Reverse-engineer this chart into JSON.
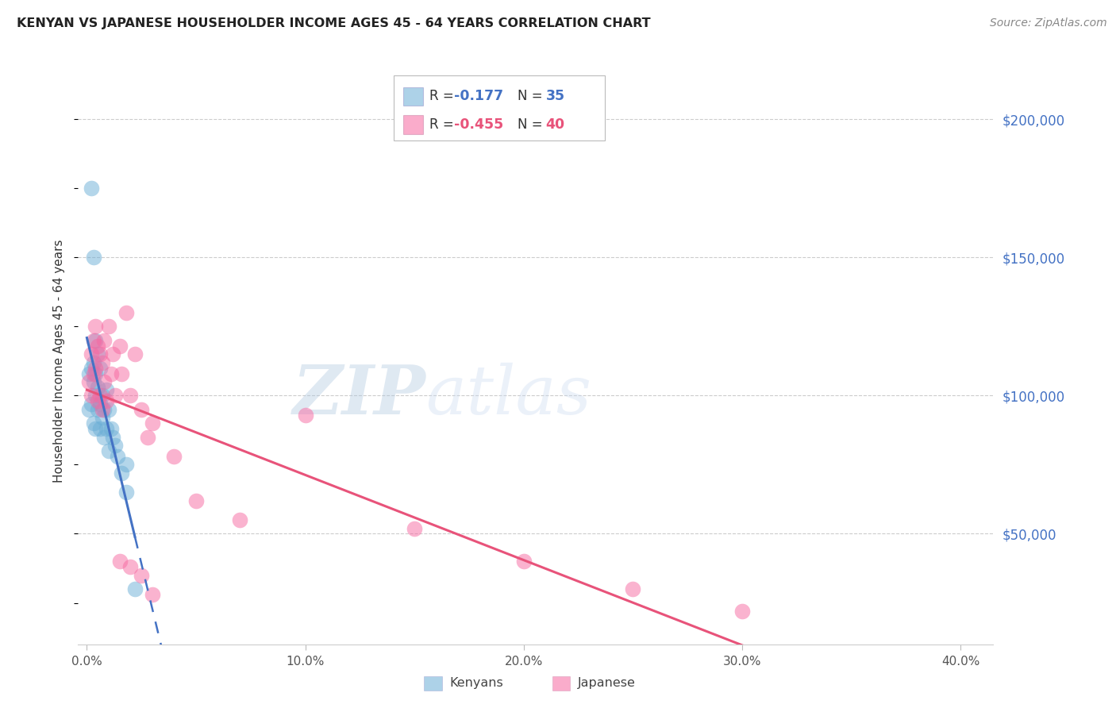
{
  "title": "KENYAN VS JAPANESE HOUSEHOLDER INCOME AGES 45 - 64 YEARS CORRELATION CHART",
  "source": "Source: ZipAtlas.com",
  "ylabel": "Householder Income Ages 45 - 64 years",
  "xlim": [
    -0.004,
    0.415
  ],
  "ylim": [
    10000,
    215000
  ],
  "ytick_vals": [
    50000,
    100000,
    150000,
    200000
  ],
  "ytick_labels": [
    "$50,000",
    "$100,000",
    "$150,000",
    "$200,000"
  ],
  "xtick_vals": [
    0.0,
    0.1,
    0.2,
    0.3,
    0.4
  ],
  "xtick_labels": [
    "0.0%",
    "10.0%",
    "20.0%",
    "30.0%",
    "40.0%"
  ],
  "kenyan_R": "-0.177",
  "kenyan_N": "35",
  "japanese_R": "-0.455",
  "japanese_N": "40",
  "kenyan_color": "#6baed6",
  "japanese_color": "#f768a1",
  "kenyan_line_color": "#4472c4",
  "japanese_line_color": "#e8537a",
  "watermark_zip": "ZIP",
  "watermark_atlas": "atlas",
  "background_color": "#ffffff",
  "grid_color": "#cccccc",
  "kenyan_x": [
    0.001,
    0.001,
    0.002,
    0.002,
    0.003,
    0.003,
    0.003,
    0.004,
    0.004,
    0.004,
    0.005,
    0.005,
    0.005,
    0.006,
    0.006,
    0.006,
    0.007,
    0.007,
    0.008,
    0.008,
    0.009,
    0.009,
    0.01,
    0.01,
    0.011,
    0.012,
    0.013,
    0.014,
    0.016,
    0.018,
    0.002,
    0.003,
    0.004,
    0.018,
    0.022
  ],
  "kenyan_y": [
    108000,
    95000,
    110000,
    97000,
    105000,
    112000,
    90000,
    108000,
    100000,
    88000,
    103000,
    95000,
    115000,
    110000,
    97000,
    88000,
    100000,
    92000,
    95000,
    85000,
    102000,
    88000,
    95000,
    80000,
    88000,
    85000,
    82000,
    78000,
    72000,
    65000,
    175000,
    150000,
    120000,
    75000,
    30000
  ],
  "japanese_x": [
    0.001,
    0.002,
    0.002,
    0.003,
    0.003,
    0.004,
    0.004,
    0.005,
    0.005,
    0.006,
    0.006,
    0.007,
    0.007,
    0.008,
    0.008,
    0.009,
    0.01,
    0.011,
    0.012,
    0.013,
    0.015,
    0.016,
    0.018,
    0.02,
    0.022,
    0.025,
    0.028,
    0.03,
    0.04,
    0.05,
    0.07,
    0.1,
    0.15,
    0.2,
    0.25,
    0.3,
    0.015,
    0.02,
    0.025,
    0.03
  ],
  "japanese_y": [
    105000,
    115000,
    100000,
    120000,
    108000,
    125000,
    110000,
    118000,
    98000,
    115000,
    100000,
    112000,
    95000,
    120000,
    105000,
    98000,
    125000,
    108000,
    115000,
    100000,
    118000,
    108000,
    130000,
    100000,
    115000,
    95000,
    85000,
    90000,
    78000,
    62000,
    55000,
    93000,
    52000,
    40000,
    30000,
    22000,
    40000,
    38000,
    35000,
    28000
  ]
}
